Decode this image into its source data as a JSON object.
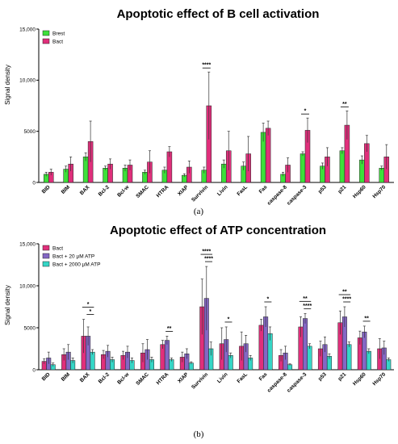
{
  "chart_data": [
    {
      "type": "bar",
      "title": "Apoptotic effect of B cell activation",
      "ylabel": "Signal density",
      "ylim": [
        0,
        15000
      ],
      "yticks": [
        "0",
        "5000",
        "10,000",
        "15,000"
      ],
      "caption": "(a)",
      "categories": [
        "BID",
        "BIM",
        "BAX",
        "Bcl-2",
        "Bcl-w",
        "SMAC",
        "HTRA",
        "XIAP",
        "Survivin",
        "Livin",
        "FasL",
        "Fas",
        "caspase-8",
        "caspase-3",
        "p53",
        "p21",
        "Hsp60",
        "Hsp70"
      ],
      "legend_position": "top-left",
      "series": [
        {
          "name": "Brest",
          "color": "#3de03a",
          "values": [
            800,
            1300,
            2500,
            1400,
            1400,
            1000,
            1200,
            700,
            1200,
            1800,
            1600,
            4900,
            800,
            2800,
            1600,
            3100,
            2200,
            1400
          ],
          "errors": [
            200,
            300,
            400,
            200,
            300,
            200,
            300,
            150,
            300,
            400,
            400,
            900,
            200,
            200,
            300,
            300,
            400,
            200
          ]
        },
        {
          "name": "Bact",
          "color": "#e02f7b",
          "values": [
            1000,
            1800,
            4000,
            1800,
            1700,
            2000,
            3000,
            1500,
            7500,
            3100,
            2800,
            5300,
            1700,
            5100,
            2500,
            5600,
            3800,
            2500
          ],
          "errors": [
            300,
            700,
            2000,
            500,
            500,
            1100,
            500,
            600,
            3300,
            1900,
            1700,
            700,
            700,
            1200,
            900,
            1400,
            800,
            1200
          ]
        }
      ],
      "significance": [
        {
          "label": "****",
          "from": "Survivin",
          "to": "Survivin",
          "pairs": [
            0,
            1
          ]
        },
        {
          "label": "*",
          "from": "caspase-3",
          "to": "caspase-3",
          "pairs": [
            0,
            1
          ]
        },
        {
          "label": "**",
          "from": "p21",
          "to": "p21",
          "pairs": [
            0,
            1
          ]
        }
      ]
    },
    {
      "type": "bar",
      "title": "Apoptotic effect of ATP concentration",
      "ylabel": "Signal density",
      "ylim": [
        0,
        15000
      ],
      "yticks": [
        "0",
        "5000",
        "10,000",
        "15,000"
      ],
      "caption": "(b)",
      "categories": [
        "BID",
        "BIM",
        "BAX",
        "Bcl-2",
        "Bcl-w",
        "SMAC",
        "HTRA",
        "XIAP",
        "Survivin",
        "Livin",
        "FasL",
        "Fas",
        "caspase-8",
        "caspase-3",
        "p53",
        "p21",
        "Hsp60",
        "Hsp70"
      ],
      "legend_position": "top-left",
      "series": [
        {
          "name": "Bact",
          "color": "#e02f7b",
          "values": [
            1000,
            1800,
            4000,
            1800,
            1700,
            2000,
            3000,
            1500,
            7500,
            3100,
            2800,
            5300,
            1700,
            5100,
            2500,
            5600,
            3800,
            2500
          ],
          "errors": [
            300,
            700,
            2000,
            500,
            500,
            1100,
            500,
            600,
            3300,
            1900,
            1700,
            700,
            700,
            1200,
            900,
            1400,
            800,
            1200
          ]
        },
        {
          "name": "Bact + 20 µM ATP",
          "color": "#8467c4",
          "values": [
            1400,
            2100,
            4000,
            2200,
            2100,
            2400,
            3500,
            1900,
            8500,
            3600,
            3100,
            6300,
            2000,
            6100,
            3000,
            6300,
            4500,
            2600
          ],
          "errors": [
            700,
            900,
            1100,
            700,
            700,
            1200,
            500,
            600,
            3800,
            1500,
            1000,
            1200,
            800,
            600,
            900,
            1200,
            700,
            800
          ]
        },
        {
          "name": "Bact + 2000 µM ATP",
          "color": "#35d6c6",
          "values": [
            600,
            1100,
            2100,
            1200,
            1100,
            1200,
            1200,
            800,
            2500,
            1700,
            1400,
            4300,
            600,
            2800,
            1600,
            3000,
            2200,
            1200
          ],
          "errors": [
            200,
            300,
            300,
            300,
            300,
            300,
            200,
            150,
            800,
            300,
            300,
            800,
            100,
            300,
            300,
            300,
            300,
            200
          ]
        }
      ],
      "significance": [
        {
          "label": "*",
          "category": "BAX",
          "pairs": [
            0,
            2
          ],
          "level": 1
        },
        {
          "label": "*",
          "category": "BAX",
          "pairs": [
            1,
            2
          ],
          "level": 0
        },
        {
          "label": "**",
          "category": "HTRA",
          "pairs": [
            1,
            2
          ],
          "level": 0
        },
        {
          "label": "****",
          "category": "Survivin",
          "pairs": [
            0,
            2
          ],
          "level": 1
        },
        {
          "label": "****",
          "category": "Survivin",
          "pairs": [
            1,
            2
          ],
          "level": 0
        },
        {
          "label": "*",
          "category": "Livin",
          "pairs": [
            1,
            2
          ],
          "level": 0
        },
        {
          "label": "*",
          "category": "Fas",
          "pairs": [
            1,
            2
          ],
          "level": 0
        },
        {
          "label": "**",
          "category": "caspase-3",
          "pairs": [
            0,
            2
          ],
          "level": 1
        },
        {
          "label": "****",
          "category": "caspase-3",
          "pairs": [
            1,
            2
          ],
          "level": 0
        },
        {
          "label": "**",
          "category": "p21",
          "pairs": [
            0,
            2
          ],
          "level": 1
        },
        {
          "label": "****",
          "category": "p21",
          "pairs": [
            1,
            2
          ],
          "level": 0
        },
        {
          "label": "**",
          "category": "Hsp60",
          "pairs": [
            1,
            2
          ],
          "level": 0
        }
      ]
    }
  ]
}
